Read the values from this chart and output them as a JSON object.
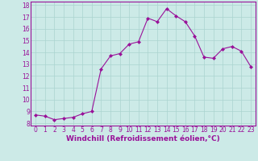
{
  "x": [
    0,
    1,
    2,
    3,
    4,
    5,
    6,
    7,
    8,
    9,
    10,
    11,
    12,
    13,
    14,
    15,
    16,
    17,
    18,
    19,
    20,
    21,
    22,
    23
  ],
  "y": [
    8.7,
    8.6,
    8.3,
    8.4,
    8.5,
    8.8,
    9.0,
    12.6,
    13.7,
    13.9,
    14.7,
    14.9,
    16.9,
    16.6,
    17.7,
    17.1,
    16.6,
    15.4,
    13.6,
    13.5,
    14.3,
    14.5,
    14.1,
    12.8
  ],
  "line_color": "#991199",
  "marker_color": "#991199",
  "bg_color": "#cceae7",
  "grid_color": "#aad4d0",
  "xlabel": "Windchill (Refroidissement éolien,°C)",
  "xlabel_color": "#991199",
  "xlim": [
    -0.5,
    23.5
  ],
  "ylim": [
    7.8,
    18.3
  ],
  "yticks": [
    8,
    9,
    10,
    11,
    12,
    13,
    14,
    15,
    16,
    17,
    18
  ],
  "xticks": [
    0,
    1,
    2,
    3,
    4,
    5,
    6,
    7,
    8,
    9,
    10,
    11,
    12,
    13,
    14,
    15,
    16,
    17,
    18,
    19,
    20,
    21,
    22,
    23
  ],
  "tick_color": "#991199",
  "tick_fontsize": 5.5,
  "xlabel_fontsize": 6.5,
  "border_color": "#991199",
  "linewidth": 0.8,
  "markersize": 2.0
}
